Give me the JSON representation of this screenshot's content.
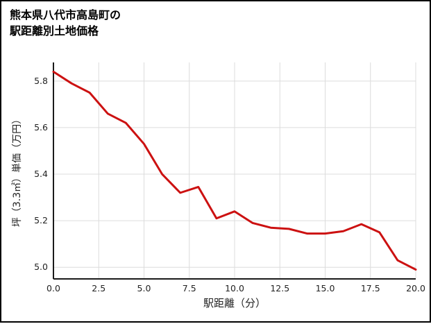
{
  "header": {
    "title_line1": "熊本県八代市高島町の",
    "title_line2": "駅距離別土地価格"
  },
  "chart_data": {
    "type": "line",
    "title": "熊本県八代市高島町の駅距離別土地価格",
    "xlabel": "駅距離（分）",
    "ylabel": "坪（3.3㎡）単価（万円）",
    "x": [
      0,
      1,
      2,
      3,
      4,
      5,
      6,
      7,
      8,
      9,
      10,
      11,
      12,
      13,
      14,
      15,
      16,
      17,
      18,
      19,
      20
    ],
    "y": [
      5.84,
      5.79,
      5.75,
      5.66,
      5.62,
      5.53,
      5.4,
      5.32,
      5.345,
      5.21,
      5.24,
      5.19,
      5.17,
      5.165,
      5.145,
      5.145,
      5.155,
      5.185,
      5.15,
      5.03,
      4.99
    ],
    "xlim": [
      0,
      20
    ],
    "ylim": [
      4.95,
      5.88
    ],
    "xticks": [
      0,
      2.5,
      5,
      7.5,
      10,
      12.5,
      15,
      17.5,
      20
    ],
    "xtick_labels": [
      "0.0",
      "2.5",
      "5.0",
      "7.5",
      "10.0",
      "12.5",
      "15.0",
      "17.5",
      "20.0"
    ],
    "yticks": [
      5.0,
      5.2,
      5.4,
      5.6,
      5.8
    ],
    "ytick_labels": [
      "5.0",
      "5.2",
      "5.4",
      "5.6",
      "5.8"
    ],
    "grid": true,
    "legend": false,
    "line_color": "#cc1111",
    "grid_color": "#dcdcdc",
    "axis_color": "#1a1a1a",
    "background_color": "#ffffff"
  }
}
